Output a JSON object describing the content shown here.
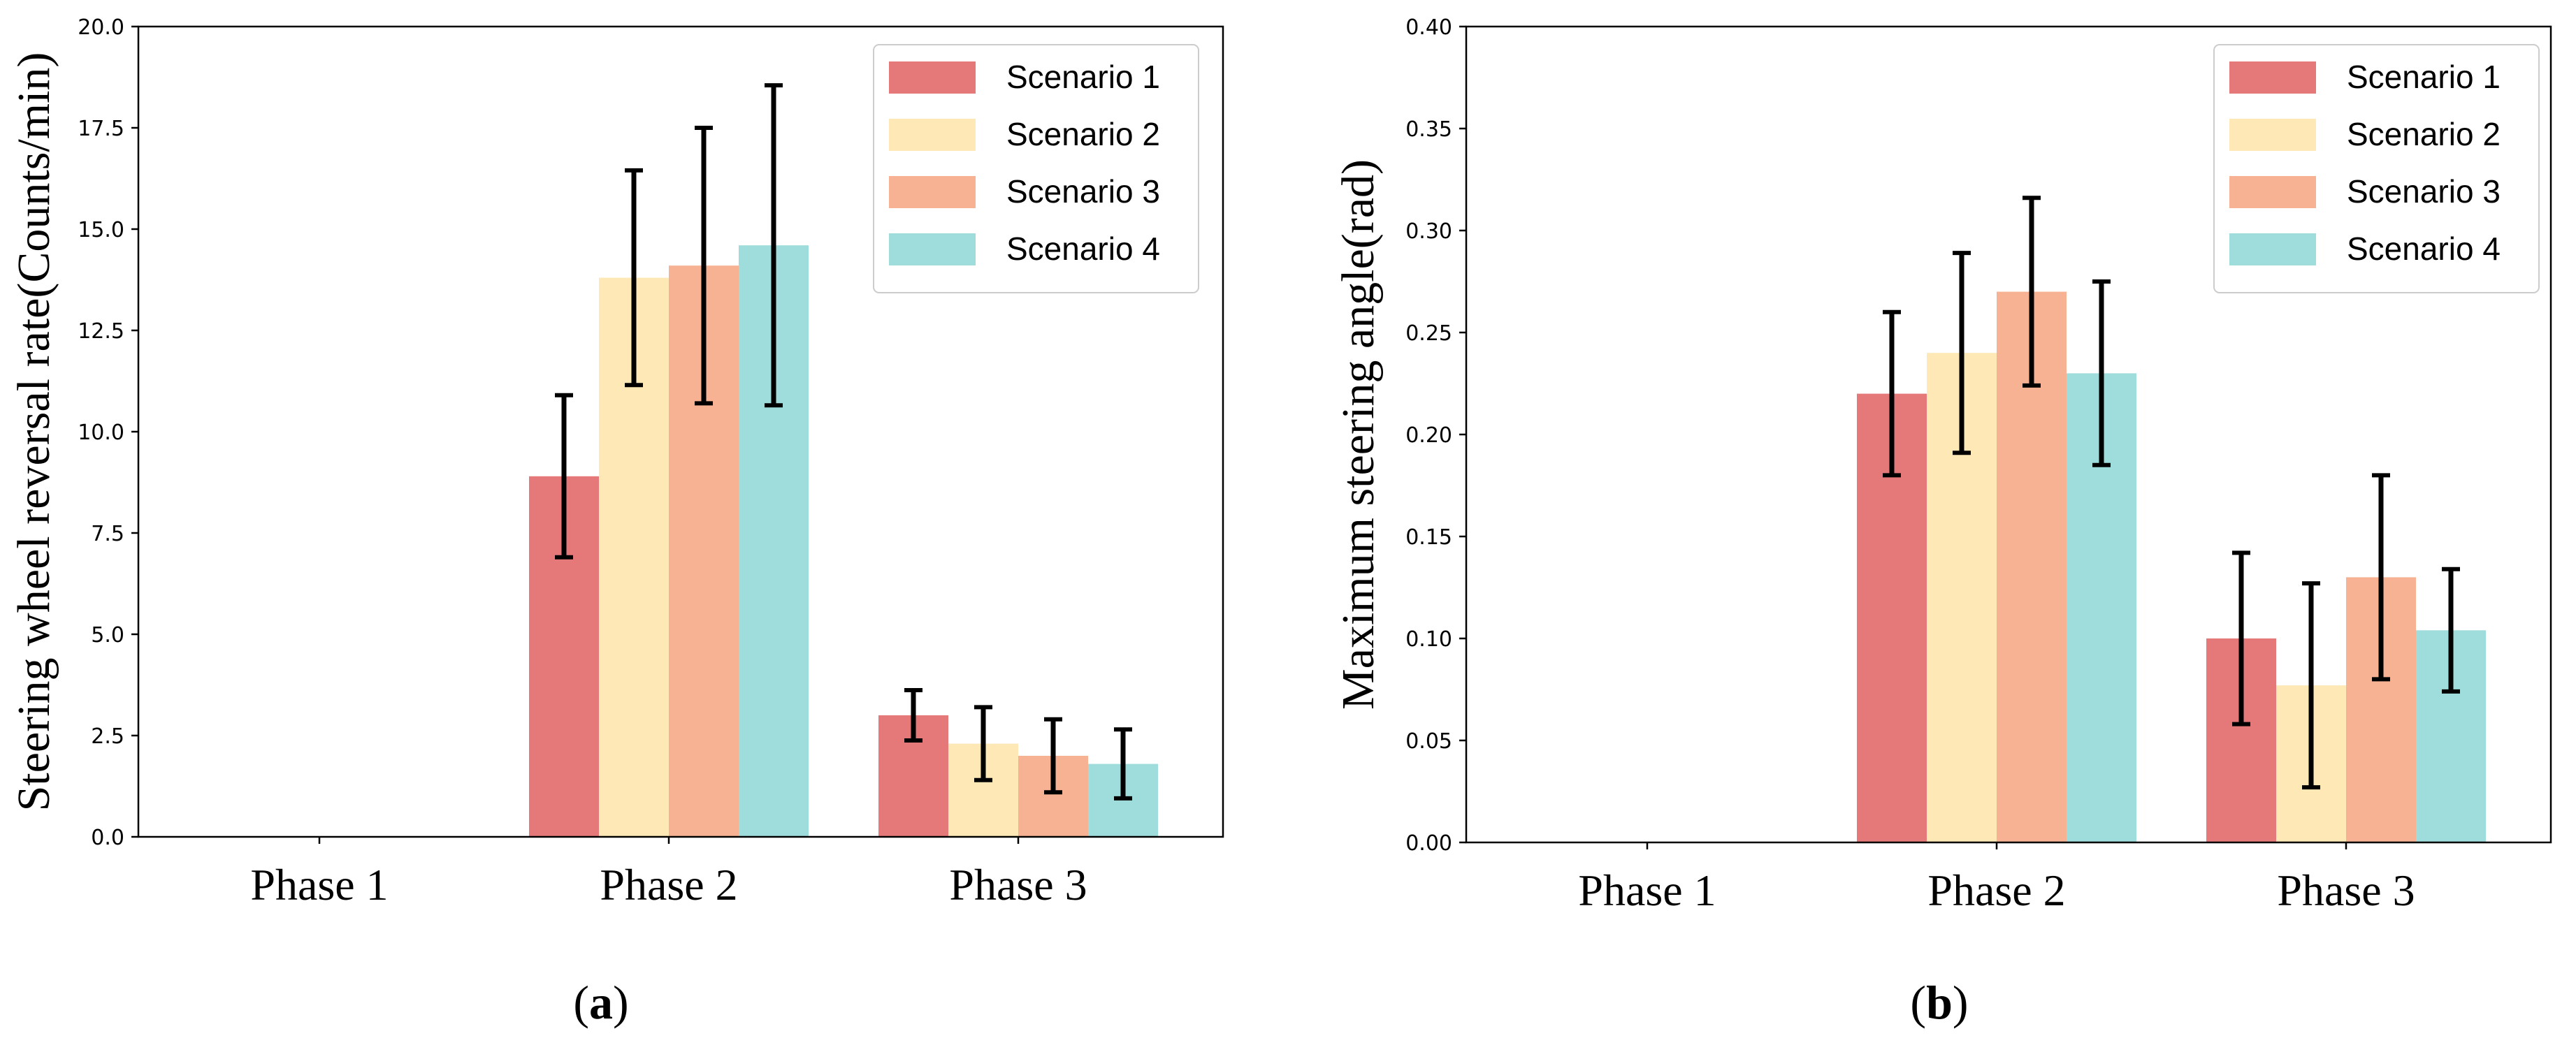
{
  "chart_data": [
    {
      "type": "bar",
      "caption_letter": "a",
      "categories": [
        "Phase 1",
        "Phase 2",
        "Phase 3"
      ],
      "ylabel": "Steering wheel reversal rate(Counts/min)",
      "xlabel": "",
      "ylim": [
        0,
        20
      ],
      "yticks": [
        "0.0",
        "2.5",
        "5.0",
        "7.5",
        "10.0",
        "12.5",
        "15.0",
        "17.5",
        "20.0"
      ],
      "ytick_values": [
        0,
        2.5,
        5,
        7.5,
        10,
        12.5,
        15,
        17.5,
        20
      ],
      "legend_position": "top-right",
      "series": [
        {
          "name": "Scenario 1",
          "color": "#e57878",
          "values": [
            0,
            8.9,
            3.0
          ],
          "errors": [
            0,
            2.0,
            0.62
          ]
        },
        {
          "name": "Scenario 2",
          "color": "#fde8b6",
          "values": [
            0,
            13.8,
            2.3
          ],
          "errors": [
            0,
            2.65,
            0.9
          ]
        },
        {
          "name": "Scenario 3",
          "color": "#f6b293",
          "values": [
            0,
            14.1,
            2.0
          ],
          "errors": [
            0,
            3.4,
            0.9
          ]
        },
        {
          "name": "Scenario 4",
          "color": "#9fdcdc",
          "values": [
            0,
            14.6,
            1.8
          ],
          "errors": [
            0,
            3.95,
            0.85
          ]
        }
      ]
    },
    {
      "type": "bar",
      "caption_letter": "b",
      "categories": [
        "Phase 1",
        "Phase 2",
        "Phase 3"
      ],
      "ylabel": "Maximum steering angle(rad)",
      "xlabel": "",
      "ylim": [
        0,
        0.4
      ],
      "yticks": [
        "0.00",
        "0.05",
        "0.10",
        "0.15",
        "0.20",
        "0.25",
        "0.30",
        "0.35",
        "0.40"
      ],
      "ytick_values": [
        0,
        0.05,
        0.1,
        0.15,
        0.2,
        0.25,
        0.3,
        0.35,
        0.4
      ],
      "legend_position": "top-right",
      "series": [
        {
          "name": "Scenario 1",
          "color": "#e57878",
          "values": [
            0,
            0.22,
            0.1
          ],
          "errors": [
            0,
            0.04,
            0.042
          ]
        },
        {
          "name": "Scenario 2",
          "color": "#fde8b6",
          "values": [
            0,
            0.24,
            0.077
          ],
          "errors": [
            0,
            0.049,
            0.05
          ]
        },
        {
          "name": "Scenario 3",
          "color": "#f6b293",
          "values": [
            0,
            0.27,
            0.13
          ],
          "errors": [
            0,
            0.046,
            0.05
          ]
        },
        {
          "name": "Scenario 4",
          "color": "#9fdcdc",
          "values": [
            0,
            0.23,
            0.104
          ],
          "errors": [
            0,
            0.045,
            0.03
          ]
        }
      ]
    }
  ]
}
